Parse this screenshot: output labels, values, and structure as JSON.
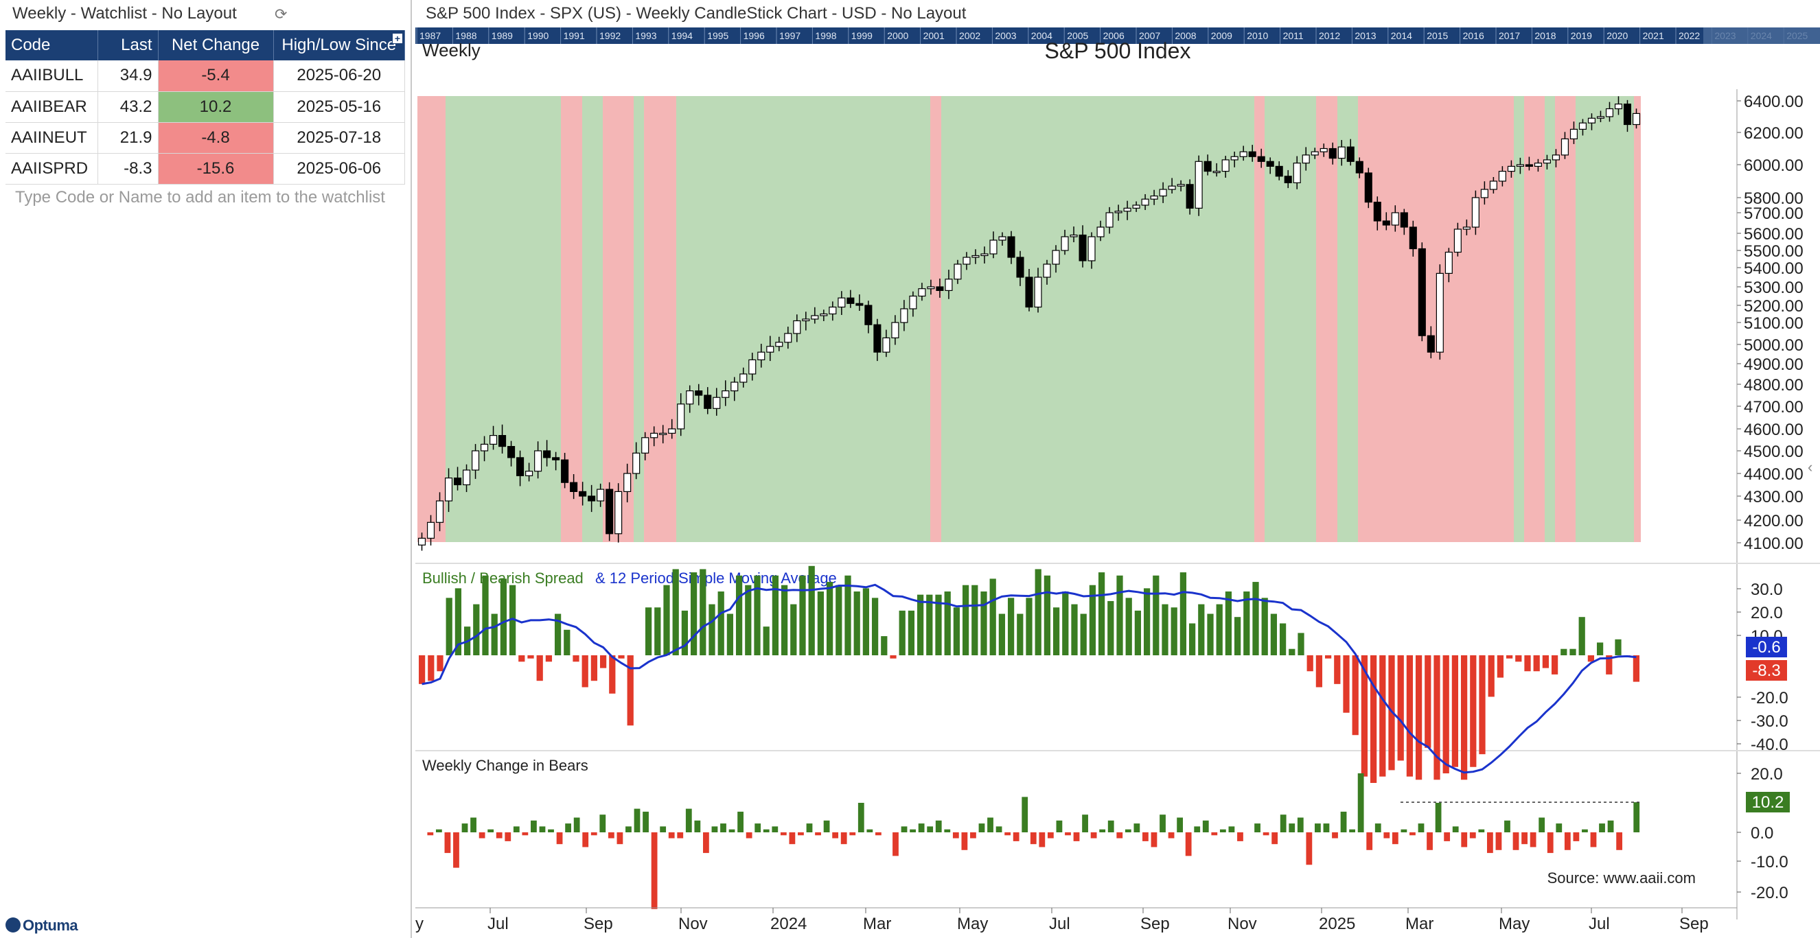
{
  "watchlist": {
    "title": "Weekly - Watchlist - No Layout",
    "columns": [
      "Code",
      "Last",
      "Net Change",
      "High/Low Since"
    ],
    "rows": [
      {
        "code": "AAIIBULL",
        "last": "34.9",
        "net": "-5.4",
        "since": "2025-06-20",
        "status": "negative"
      },
      {
        "code": "AAIIBEAR",
        "last": "43.2",
        "net": "10.2",
        "since": "2025-05-16",
        "status": "positive"
      },
      {
        "code": "AAIINEUT",
        "last": "21.9",
        "net": "-4.8",
        "since": "2025-07-18",
        "status": "negative"
      },
      {
        "code": "AAIISPRD",
        "last": "-8.3",
        "net": "-15.6",
        "since": "2025-06-06",
        "status": "negative"
      }
    ],
    "add_placeholder": "Type Code or Name to add an item to the watchlist",
    "logo_text": "Optuma"
  },
  "chart": {
    "window_title": "S&P 500 Index - SPX (US) - Weekly CandleStick Chart - USD - No Layout",
    "timeline_years": [
      "1987",
      "1988",
      "1989",
      "1990",
      "1991",
      "1992",
      "1993",
      "1994",
      "1995",
      "1996",
      "1997",
      "1998",
      "1999",
      "2000",
      "2001",
      "2002",
      "2003",
      "2004",
      "2005",
      "2006",
      "2007",
      "2008",
      "2009",
      "2010",
      "2011",
      "2012",
      "2013",
      "2014",
      "2015",
      "2016",
      "2017",
      "2018",
      "2019",
      "2020",
      "2021",
      "2022",
      "2023",
      "2024",
      "2025"
    ],
    "periodicity": "Weekly",
    "title": "S&P 500 Index",
    "price_axis": [
      "6400.00",
      "6200.00",
      "6000.00",
      "5800.00",
      "5700.00",
      "5600.00",
      "5500.00",
      "5400.00",
      "5300.00",
      "5200.00",
      "5100.00",
      "5000.00",
      "4900.00",
      "4800.00",
      "4700.00",
      "4600.00",
      "4500.00",
      "4400.00",
      "4300.00",
      "4200.00",
      "4100.00"
    ],
    "spread_panel": {
      "title_part1": "Bullish / Bearish Spread",
      "title_part2": "& 12 Period Simple Moving Average",
      "axis": [
        "30.0",
        "20.0",
        "10.0",
        "-20.0",
        "-30.0",
        "-40.0"
      ],
      "sma_value": "-0.6",
      "spread_value": "-8.3"
    },
    "bears_panel": {
      "title": "Weekly Change in Bears",
      "axis": [
        "20.0",
        "0.0",
        "-10.0",
        "-20.0"
      ],
      "last_value": "10.2",
      "source": "Source: www.aaii.com"
    },
    "date_axis": [
      "Jul",
      "Sep",
      "Nov",
      "2024",
      "Mar",
      "May",
      "Jul",
      "Sep",
      "Nov",
      "2025",
      "Mar",
      "May",
      "Jul",
      "Sep"
    ],
    "date_axis_partial": "y",
    "colors": {
      "header_blue": "#1b3f74",
      "bull_zone": "#bcdab7",
      "bear_zone": "#f4b6b6",
      "positive_bar": "#3a7d22",
      "negative_bar": "#e23a2a",
      "sma_line": "#1a33cc"
    }
  },
  "icons": {
    "refresh": "refresh-icon",
    "add_column": "add-column-icon",
    "expand": "chevron-left-icon"
  }
}
